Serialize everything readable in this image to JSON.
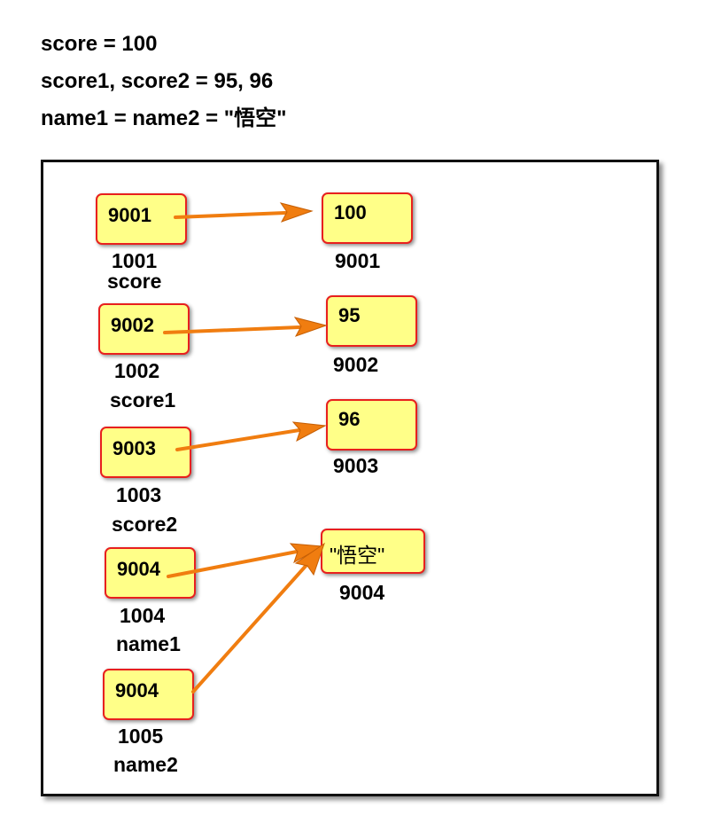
{
  "code_lines": [
    "score = 100",
    "score1, score2 = 95, 96",
    "name1 = name2 = \"悟空\""
  ],
  "variables": [
    {
      "pointer": "9001",
      "address": "1001",
      "name": "score"
    },
    {
      "pointer": "9002",
      "address": "1002",
      "name": "score1"
    },
    {
      "pointer": "9003",
      "address": "1003",
      "name": "score2"
    },
    {
      "pointer": "9004",
      "address": "1004",
      "name": "name1"
    },
    {
      "pointer": "9004",
      "address": "1005",
      "name": "name2"
    }
  ],
  "values": [
    {
      "value": "100",
      "address": "9001"
    },
    {
      "value": "95",
      "address": "9002"
    },
    {
      "value": "96",
      "address": "9003"
    },
    {
      "value": "\"悟空\"",
      "address": "9004"
    }
  ],
  "colors": {
    "cell_fill": "#ffff88",
    "cell_border": "#e8201e",
    "arrow": "#f07d10",
    "frame": "#111111"
  }
}
